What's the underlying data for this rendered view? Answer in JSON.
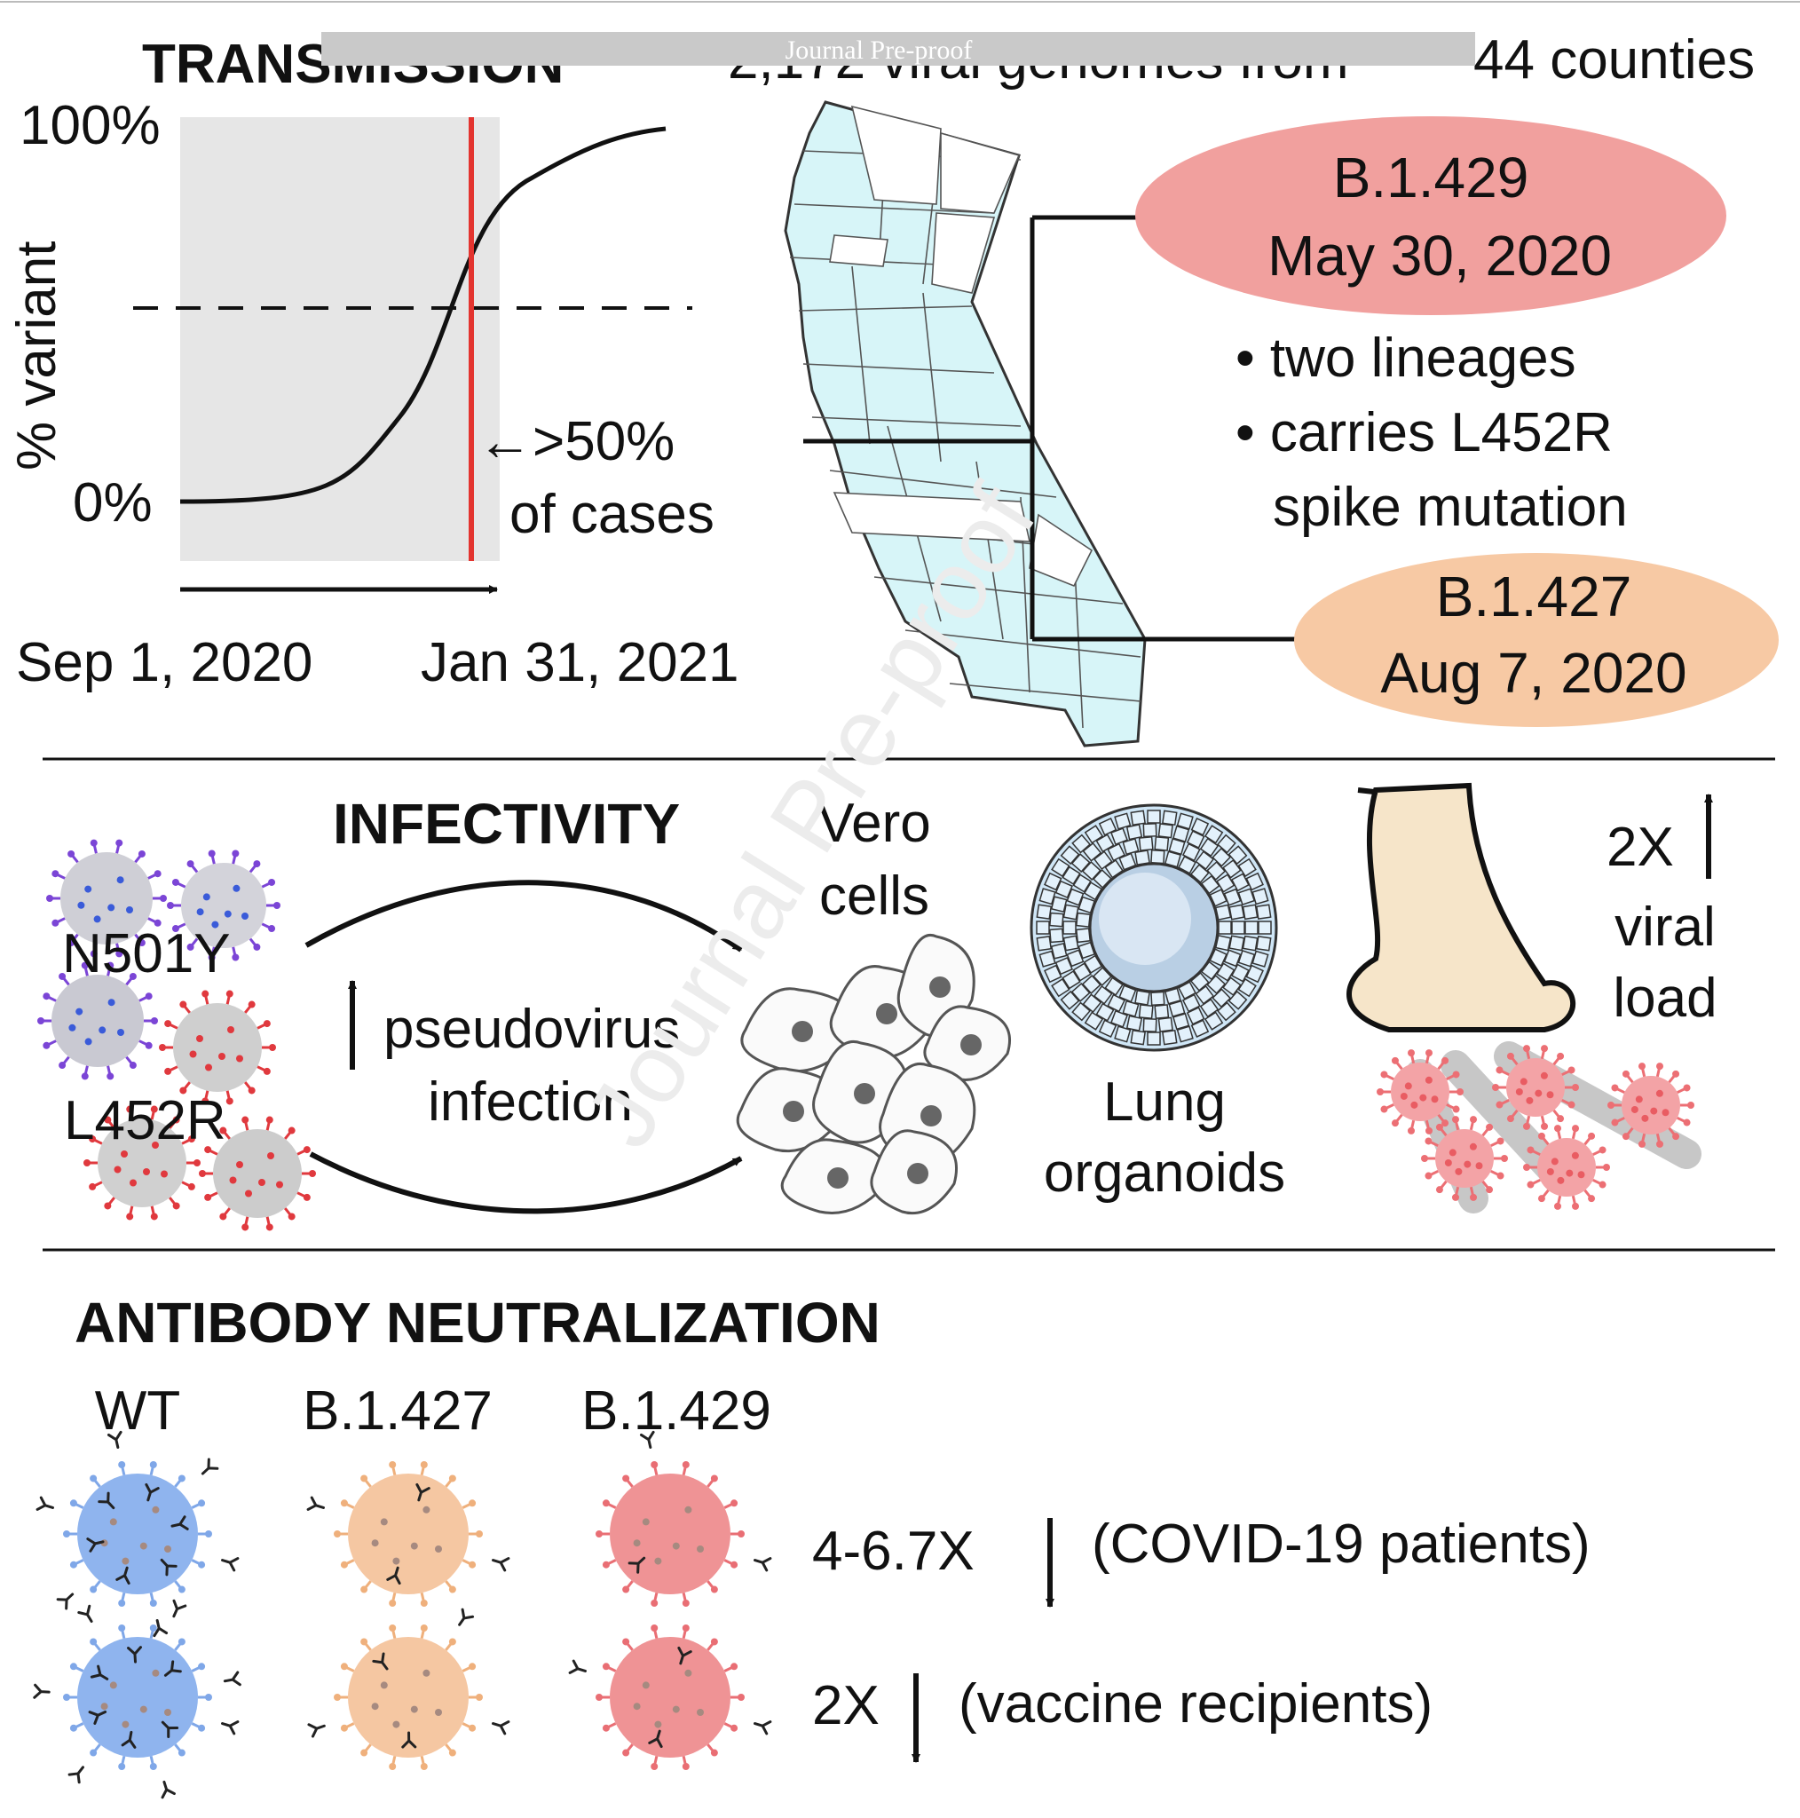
{
  "header": {
    "journal_banner": "Journal Pre-proof",
    "transmission_title_fragment": "TRANSMISSION",
    "genomes_text_fragment": "2,172 viral genomes from",
    "counties_text": "44 counties"
  },
  "transmission_chart": {
    "y_top_label": "100%",
    "y_bottom_label": "0%",
    "y_axis_label": "% variant",
    "arrow_label_line1": "←>50%",
    "arrow_label_line2": "of cases",
    "x_start_label": "Sep 1, 2020",
    "x_end_label": "Jan 31, 2021"
  },
  "lineages": {
    "b1429": {
      "name": "B.1.429",
      "date": "May 30, 2020",
      "color": "#f1a09e"
    },
    "b1427": {
      "name": "B.1.427",
      "date": "Aug 7, 2020",
      "color": "#f7c9a4"
    },
    "bullets": [
      "• two lineages",
      "• carries L452R",
      "spike mutation"
    ]
  },
  "infectivity": {
    "title": "INFECTIVITY",
    "virus_label_1": "N501Y",
    "virus_label_2": "L452R",
    "effect_line1": "pseudovirus",
    "effect_line2": "infection",
    "vero_line1": "Vero",
    "vero_line2": "cells",
    "lung_line1": "Lung",
    "lung_line2": "organoids",
    "load_line1": "2X",
    "load_line2": "viral",
    "load_line3": "load"
  },
  "antibody": {
    "title": "ANTIBODY NEUTRALIZATION",
    "col_wt": "WT",
    "col_b1427": "B.1.427",
    "col_b1429": "B.1.429",
    "row1_fold": "4-6.7X",
    "row1_group": "(COVID-19 patients)",
    "row2_fold": "2X",
    "row2_group": "(vaccine recipients)",
    "colors": {
      "wt": "#8fb4ee",
      "b1427": "#f5c7a2",
      "b1429": "#ef9395"
    }
  },
  "watermark": "Journal Pre-proof"
}
